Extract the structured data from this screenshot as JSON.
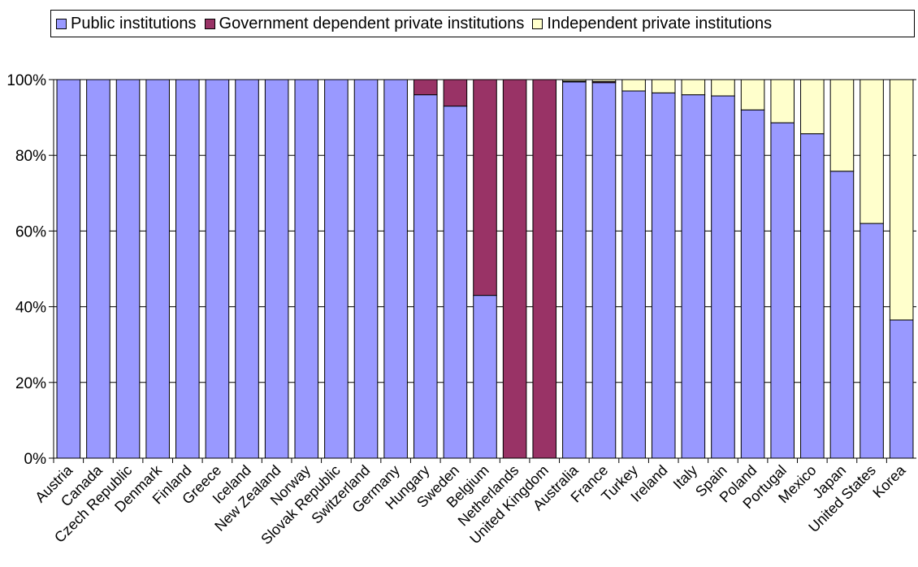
{
  "chart_data": {
    "type": "bar",
    "stacked": true,
    "ylim": [
      0,
      100
    ],
    "y_ticks": [
      "0%",
      "20%",
      "40%",
      "60%",
      "80%",
      "100%"
    ],
    "grid": true,
    "legend_position": "top",
    "categories": [
      "Austria",
      "Canada",
      "Czech Republic",
      "Denmark",
      "Finland",
      "Greece",
      "Iceland",
      "New Zealand",
      "Norway",
      "Slovak Republic",
      "Switzerland",
      "Germany",
      "Hungary",
      "Sweden",
      "Belgium",
      "Netherlands",
      "United Kingdom",
      "Australia",
      "France",
      "Turkey",
      "Ireland",
      "Italy",
      "Spain",
      "Poland",
      "Portugal",
      "Mexico",
      "Japan",
      "United States",
      "Korea"
    ],
    "series": [
      {
        "name": "Public institutions",
        "color": "#9999ff",
        "values": [
          100,
          100,
          100,
          100,
          100,
          100,
          100,
          100,
          100,
          100,
          100,
          100,
          96,
          93,
          43,
          0,
          0,
          99.4,
          99.2,
          97,
          96.5,
          96,
          95.7,
          92,
          88.6,
          85.7,
          75.8,
          62,
          36.5
        ]
      },
      {
        "name": "Government dependent private institutions",
        "color": "#993366",
        "values": [
          0,
          0,
          0,
          0,
          0,
          0,
          0,
          0,
          0,
          0,
          0,
          0,
          4,
          7,
          57,
          100,
          100,
          0.2,
          0.3,
          0,
          0,
          0,
          0,
          0,
          0,
          0,
          0,
          0,
          0
        ]
      },
      {
        "name": "Independent private institutions",
        "color": "#ffffcc",
        "values": [
          0,
          0,
          0,
          0,
          0,
          0,
          0,
          0,
          0,
          0,
          0,
          0,
          0,
          0,
          0,
          0,
          0,
          0.4,
          0.5,
          3,
          3.5,
          4,
          4.3,
          8,
          11.4,
          14.3,
          24.2,
          38,
          63.5
        ]
      }
    ]
  }
}
